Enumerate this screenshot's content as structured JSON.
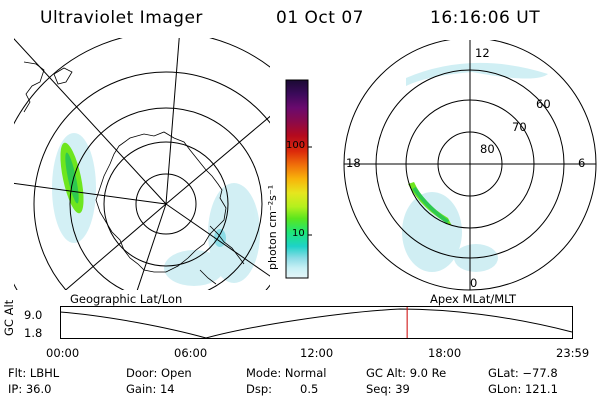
{
  "header": {
    "title": "Ultraviolet Imager",
    "date": "01 Oct 07",
    "time": "16:16:06 UT"
  },
  "colorbar": {
    "unit_label": "photon cm⁻²s⁻¹",
    "ticks": [
      "100",
      "10"
    ],
    "colors": [
      "#1a0a33",
      "#3b0a5a",
      "#6a0a6e",
      "#8a0a4a",
      "#b40a1e",
      "#dc2a0a",
      "#f0700a",
      "#f8b40a",
      "#e6e61e",
      "#b4f01e",
      "#5ae61e",
      "#1ee678",
      "#1ed2c8",
      "#8cdce6",
      "#c8f0f5",
      "#e6f5f8"
    ]
  },
  "left_map": {
    "label": "Geographic Lat/Lon"
  },
  "right_map": {
    "label": "Apex MLat/MLT",
    "mlt_labels": {
      "top": "12",
      "left": "18",
      "right": "6",
      "bottom": "0"
    },
    "lat_labels": [
      "60",
      "70",
      "80"
    ]
  },
  "timeline": {
    "axis_label": "GC Alt",
    "y_ticks": [
      "9.0",
      "1.8"
    ],
    "x_ticks": [
      "00:00",
      "06:00",
      "12:00",
      "18:00",
      "23:59"
    ],
    "current_fraction": 0.678,
    "marker_color": "#cc0000"
  },
  "info": {
    "flt": "Flt: LBHL",
    "ip": "IP: 36.0",
    "door": "Door: Open",
    "gain": "Gain: 14",
    "mode": "Mode: Normal",
    "dsp_label": "Dsp:",
    "dsp_value": "0.5",
    "gc_alt": "GC Alt: 9.0 Re",
    "seq": "Seq: 39",
    "glat": "GLat: −77.8",
    "glon": "GLon: 121.1"
  }
}
